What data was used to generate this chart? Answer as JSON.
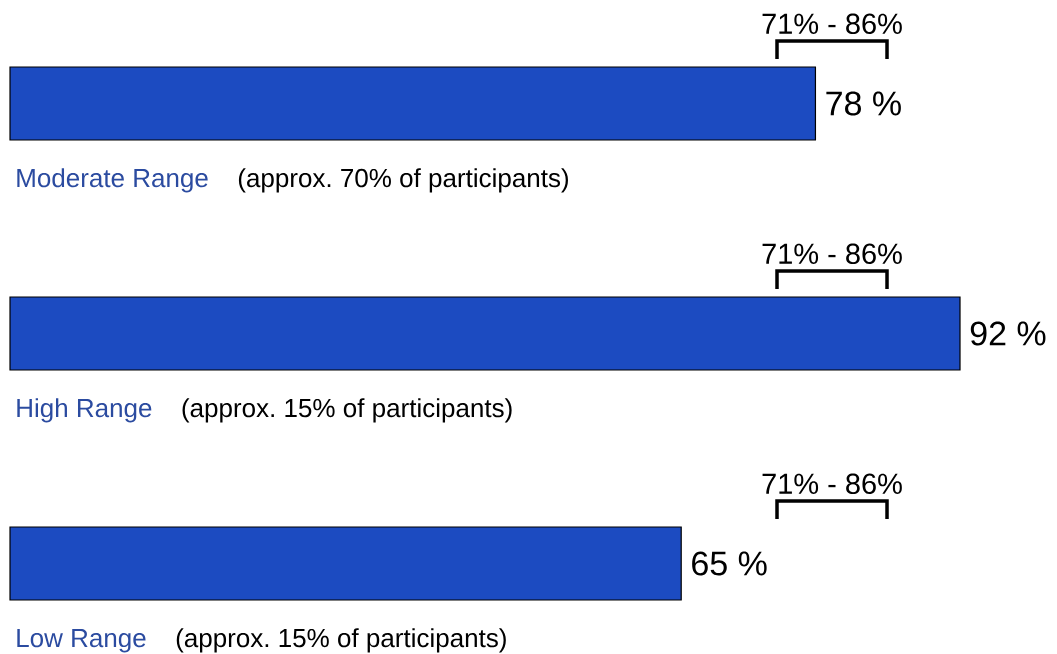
{
  "chart_data": {
    "type": "bar",
    "orientation": "horizontal",
    "categories": [
      "Moderate Range",
      "High Range",
      "Low Range"
    ],
    "values": [
      78,
      92,
      65
    ],
    "value_labels": [
      "78 %",
      "92 %",
      "65 %"
    ],
    "color": "#1c4bc1",
    "annotations": [
      "71% - 86%",
      "(approx. 70% of participants)",
      "71% - 86%",
      "(approx. 15% of participants)",
      "71% - 86%",
      "(approx. 15% of participants)"
    ]
  }
}
